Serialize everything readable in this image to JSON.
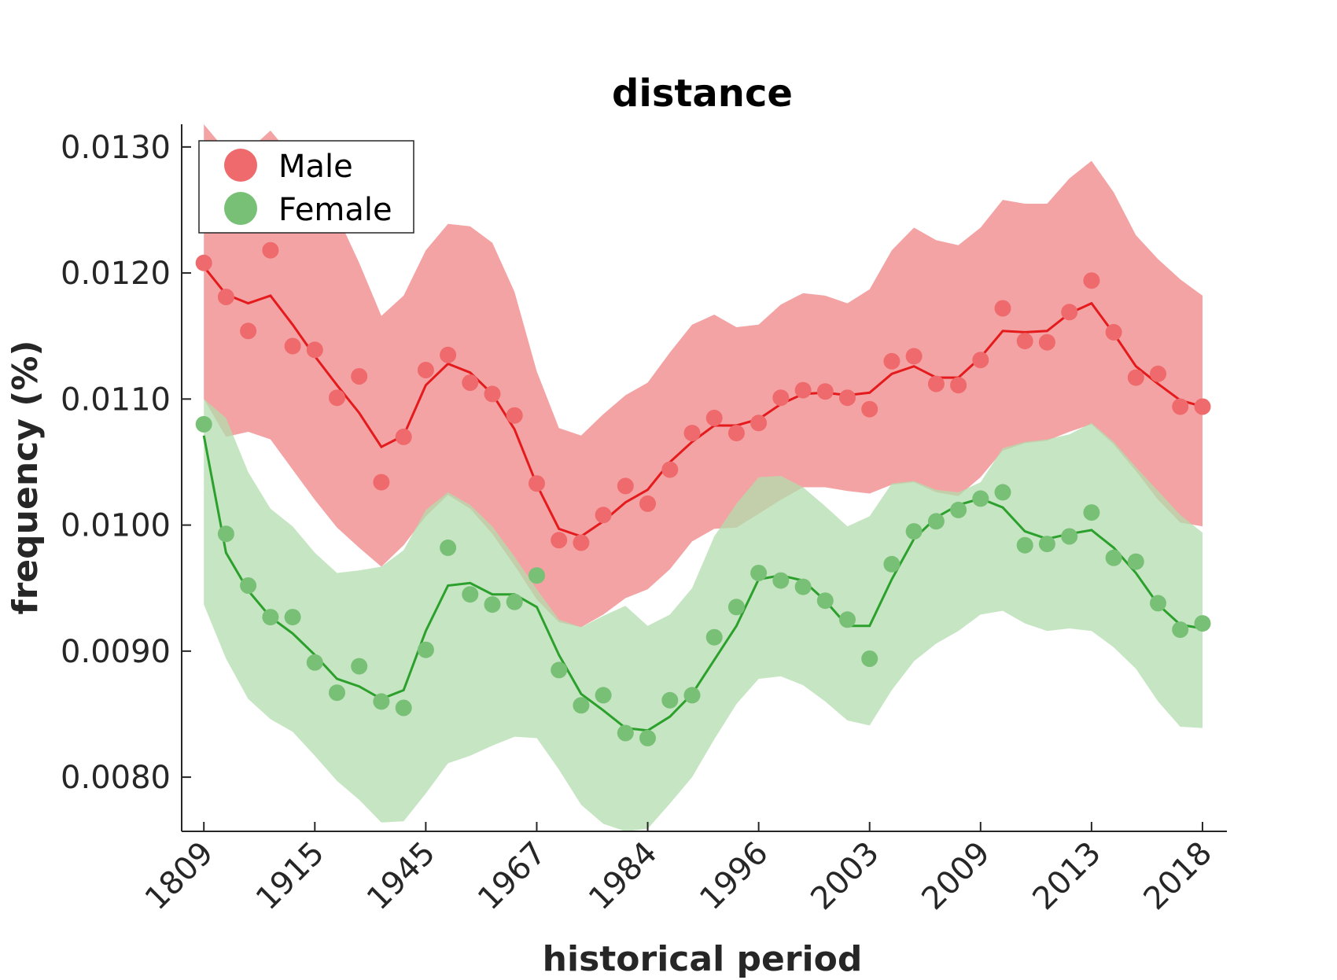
{
  "chart_data": {
    "type": "line",
    "title": "distance",
    "xlabel": "historical period",
    "ylabel": "frequency (%)",
    "x_tick_labels": [
      "1809",
      "1915",
      "1945",
      "1967",
      "1984",
      "1996",
      "2003",
      "2009",
      "2013",
      "2018"
    ],
    "y_tick_labels": [
      "0.0080",
      "0.0090",
      "0.0100",
      "0.0110",
      "0.0120",
      "0.0130"
    ],
    "y_ticks": [
      0.008,
      0.009,
      0.01,
      0.011,
      0.012,
      0.013
    ],
    "ylim": [
      0.00757,
      0.01318
    ],
    "xlim": [
      -1,
      46.1
    ],
    "x_tick_index": [
      0,
      5,
      10,
      15,
      20,
      25,
      30,
      35,
      40,
      45
    ],
    "x_index": [
      0,
      1,
      2,
      3,
      4,
      5,
      6,
      7,
      8,
      9,
      10,
      11,
      12,
      13,
      14,
      15,
      16,
      17,
      18,
      19,
      20,
      21,
      22,
      23,
      24,
      25,
      26,
      27,
      28,
      29,
      30,
      31,
      32,
      33,
      34,
      35,
      36,
      37,
      38,
      39,
      40,
      41,
      42,
      43,
      44,
      45
    ],
    "legend_position": "top-left",
    "grid": false,
    "series": [
      {
        "name": "Male",
        "color": "#e41a1c",
        "marker_color": "#ee6a6c",
        "band_color": "#f4a3a4",
        "points": [
          0.01208,
          0.01181,
          0.01154,
          0.01218,
          0.01142,
          0.01139,
          0.01101,
          0.01118,
          0.01034,
          0.0107,
          0.01123,
          0.01135,
          0.01113,
          0.01104,
          0.01087,
          0.01033,
          0.00988,
          0.00986,
          0.01008,
          0.01031,
          0.01017,
          0.01044,
          0.01073,
          0.01085,
          0.01073,
          0.01081,
          0.01101,
          0.01107,
          0.01106,
          0.01101,
          0.01092,
          0.0113,
          0.01134,
          0.01112,
          0.01111,
          0.01131,
          0.01172,
          0.01146,
          0.01145,
          0.01169,
          0.01194,
          0.01153,
          0.01117,
          0.0112,
          0.01094,
          0.01094
        ],
        "trend": [
          0.01205,
          0.01183,
          0.01176,
          0.01182,
          0.01159,
          0.01134,
          0.01111,
          0.01089,
          0.01062,
          0.01071,
          0.01111,
          0.01128,
          0.01121,
          0.01104,
          0.01076,
          0.01032,
          0.00997,
          0.00991,
          0.01003,
          0.01018,
          0.01028,
          0.0105,
          0.01066,
          0.01079,
          0.01079,
          0.01084,
          0.01096,
          0.01104,
          0.01105,
          0.01103,
          0.01105,
          0.0112,
          0.01126,
          0.01117,
          0.01117,
          0.01133,
          0.01154,
          0.01153,
          0.01154,
          0.01168,
          0.01176,
          0.01152,
          0.01126,
          0.01112,
          0.01099,
          0.01094
        ],
        "upper": [
          0.01318,
          0.01297,
          0.01297,
          0.01313,
          0.01292,
          0.01268,
          0.01246,
          0.01208,
          0.01166,
          0.01182,
          0.01218,
          0.01239,
          0.01237,
          0.01224,
          0.01185,
          0.01122,
          0.01077,
          0.01071,
          0.01088,
          0.01103,
          0.01113,
          0.01137,
          0.01159,
          0.01167,
          0.01157,
          0.01159,
          0.01175,
          0.01184,
          0.01182,
          0.01176,
          0.01187,
          0.01218,
          0.01236,
          0.01226,
          0.01222,
          0.01236,
          0.01258,
          0.01255,
          0.01255,
          0.01275,
          0.01289,
          0.01264,
          0.0123,
          0.01211,
          0.01195,
          0.01182
        ],
        "lower": [
          0.011,
          0.0107,
          0.01074,
          0.01068,
          0.01044,
          0.0102,
          0.00998,
          0.00982,
          0.00967,
          0.00984,
          0.01007,
          0.01024,
          0.01013,
          0.00993,
          0.00968,
          0.00941,
          0.00923,
          0.00919,
          0.00929,
          0.00942,
          0.00949,
          0.00965,
          0.00987,
          0.00997,
          0.00998,
          0.01009,
          0.0102,
          0.0103,
          0.0103,
          0.01027,
          0.01025,
          0.01032,
          0.01034,
          0.01026,
          0.01023,
          0.01038,
          0.01059,
          0.01065,
          0.01067,
          0.01074,
          0.0108,
          0.01064,
          0.01043,
          0.0102,
          0.01002,
          0.00999
        ]
      },
      {
        "name": "Female",
        "color": "#2ca02c",
        "marker_color": "#79c077",
        "band_color": "#b3dcae",
        "points": [
          0.0108,
          0.00993,
          0.00952,
          0.00927,
          0.00927,
          0.00891,
          0.00867,
          0.00888,
          0.0086,
          0.00855,
          0.00901,
          0.00982,
          0.00945,
          0.00937,
          0.00939,
          0.0096,
          0.00885,
          0.00857,
          0.00865,
          0.00835,
          0.00831,
          0.00861,
          0.00865,
          0.00911,
          0.00935,
          0.00962,
          0.00956,
          0.00951,
          0.0094,
          0.00925,
          0.00894,
          0.00969,
          0.00995,
          0.01003,
          0.01012,
          0.01021,
          0.01026,
          0.00984,
          0.00985,
          0.00991,
          0.0101,
          0.00974,
          0.00971,
          0.00938,
          0.00917,
          0.00922
        ],
        "trend": [
          0.01071,
          0.00978,
          0.00948,
          0.00927,
          0.00914,
          0.00897,
          0.00878,
          0.00872,
          0.00862,
          0.00869,
          0.00916,
          0.00952,
          0.00954,
          0.00945,
          0.00945,
          0.00935,
          0.00897,
          0.00866,
          0.00853,
          0.00839,
          0.00837,
          0.00848,
          0.00866,
          0.00893,
          0.0092,
          0.00957,
          0.0096,
          0.00956,
          0.0094,
          0.0092,
          0.0092,
          0.00957,
          0.00989,
          0.01006,
          0.01016,
          0.01021,
          0.01014,
          0.00995,
          0.00989,
          0.00993,
          0.00996,
          0.00982,
          0.00962,
          0.00937,
          0.00921,
          0.00918
        ],
        "upper": [
          0.011,
          0.01085,
          0.01042,
          0.01013,
          0.00999,
          0.00978,
          0.00962,
          0.00964,
          0.00967,
          0.0098,
          0.01012,
          0.01026,
          0.01016,
          0.00999,
          0.00975,
          0.00949,
          0.00925,
          0.00919,
          0.00928,
          0.00936,
          0.0092,
          0.00929,
          0.0095,
          0.00991,
          0.01017,
          0.01038,
          0.01039,
          0.0103,
          0.01015,
          0.00999,
          0.01007,
          0.01033,
          0.01035,
          0.01028,
          0.01026,
          0.01034,
          0.01061,
          0.01066,
          0.01068,
          0.01072,
          0.01081,
          0.01066,
          0.01046,
          0.01027,
          0.01008,
          0.00994
        ],
        "lower": [
          0.00937,
          0.00894,
          0.00862,
          0.00846,
          0.00836,
          0.00817,
          0.00797,
          0.00782,
          0.00764,
          0.00765,
          0.00787,
          0.00811,
          0.00817,
          0.00825,
          0.00832,
          0.00831,
          0.00806,
          0.00778,
          0.00763,
          0.00757,
          0.00759,
          0.00779,
          0.008,
          0.0083,
          0.00858,
          0.00878,
          0.0088,
          0.00873,
          0.0086,
          0.00845,
          0.00841,
          0.00869,
          0.00892,
          0.00906,
          0.00916,
          0.00929,
          0.00932,
          0.00922,
          0.00916,
          0.00918,
          0.00916,
          0.00903,
          0.00886,
          0.0086,
          0.0084,
          0.00839
        ]
      }
    ]
  }
}
